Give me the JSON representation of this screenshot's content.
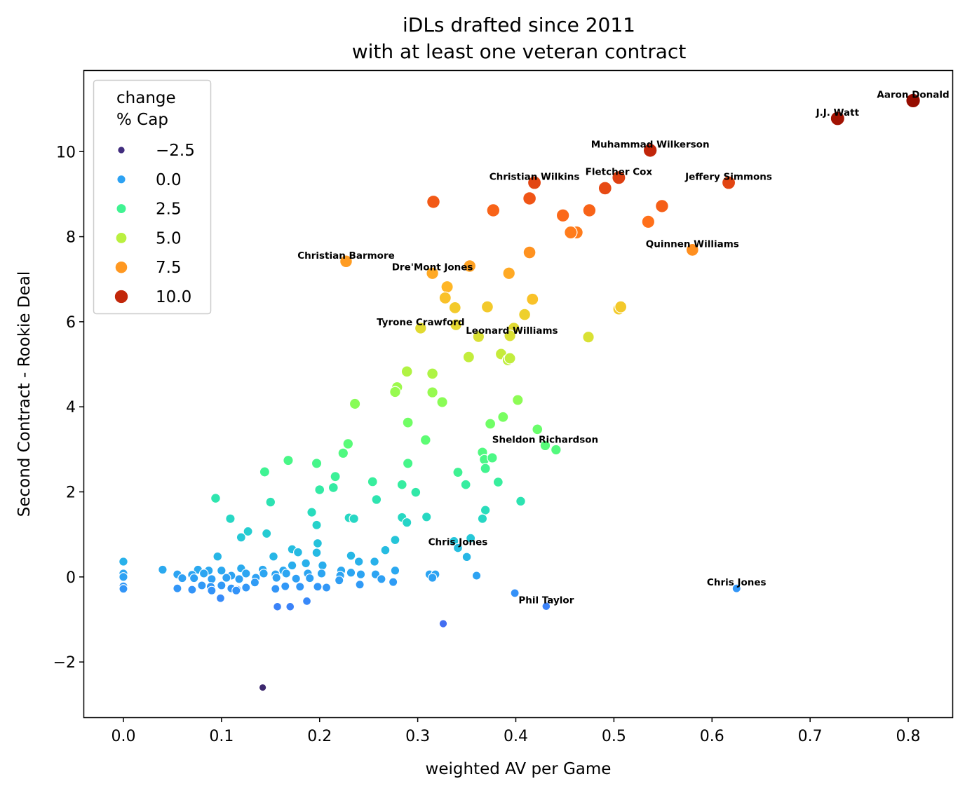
{
  "chart_data": {
    "type": "scatter",
    "title": [
      "iDLs drafted since 2011",
      "with at least one veteran contract"
    ],
    "xlabel": "weighted AV per Game",
    "ylabel": "Second Contract - Rookie Deal",
    "xlim": [
      -0.04,
      0.845
    ],
    "ylim": [
      -3.3,
      11.9
    ],
    "xticks": [
      0.0,
      0.1,
      0.2,
      0.3,
      0.4,
      0.5,
      0.6,
      0.7,
      0.8
    ],
    "xtick_labels": [
      "0.0",
      "0.1",
      "0.2",
      "0.3",
      "0.4",
      "0.5",
      "0.6",
      "0.7",
      "0.8"
    ],
    "yticks": [
      -2,
      0,
      2,
      4,
      6,
      8,
      10
    ],
    "ytick_labels": [
      "−2",
      "0",
      "2",
      "4",
      "6",
      "8",
      "10"
    ],
    "grid": false,
    "color_scale": "turbo",
    "hue_range": [
      -2.6,
      11.2
    ],
    "legend": {
      "placement": "top-left",
      "title": [
        "change",
        "% Cap"
      ],
      "entries": [
        {
          "label": "−2.5",
          "value": -2.5
        },
        {
          "label": "0.0",
          "value": 0.0
        },
        {
          "label": "2.5",
          "value": 2.5
        },
        {
          "label": "5.0",
          "value": 5.0
        },
        {
          "label": "7.5",
          "value": 7.5
        },
        {
          "label": "10.0",
          "value": 10.0
        }
      ]
    },
    "annotations": [
      {
        "text": "Aaron Donald",
        "x": 0.805,
        "y": 11.2
      },
      {
        "text": "J.J. Watt",
        "x": 0.728,
        "y": 10.78
      },
      {
        "text": "Muhammad Wilkerson",
        "x": 0.537,
        "y": 10.03
      },
      {
        "text": "Fletcher Cox",
        "x": 0.505,
        "y": 9.39
      },
      {
        "text": "Jeffery Simmons",
        "x": 0.617,
        "y": 9.27
      },
      {
        "text": "Christian Wilkins",
        "x": 0.419,
        "y": 9.27
      },
      {
        "text": "Quinnen Williams",
        "x": 0.58,
        "y": 7.69
      },
      {
        "text": "Christian Barmore",
        "x": 0.227,
        "y": 7.42
      },
      {
        "text": "Dre'Mont Jones",
        "x": 0.315,
        "y": 7.14
      },
      {
        "text": "Tyrone Crawford",
        "x": 0.303,
        "y": 5.85
      },
      {
        "text": "Leonard Williams",
        "x": 0.396,
        "y": 5.65
      },
      {
        "text": "Sheldon Richardson",
        "x": 0.43,
        "y": 3.09
      },
      {
        "text": "Chris Jones",
        "x": 0.341,
        "y": 0.68
      },
      {
        "text": "Chris Jones",
        "x": 0.625,
        "y": -0.27
      },
      {
        "text": "Phil Taylor",
        "x": 0.431,
        "y": -0.69
      }
    ],
    "points": [
      {
        "x": 0.805,
        "y": 11.2
      },
      {
        "x": 0.728,
        "y": 10.78
      },
      {
        "x": 0.537,
        "y": 10.03
      },
      {
        "x": 0.505,
        "y": 9.39
      },
      {
        "x": 0.491,
        "y": 9.14
      },
      {
        "x": 0.617,
        "y": 9.27
      },
      {
        "x": 0.419,
        "y": 9.27
      },
      {
        "x": 0.414,
        "y": 8.9
      },
      {
        "x": 0.316,
        "y": 8.82
      },
      {
        "x": 0.377,
        "y": 8.62
      },
      {
        "x": 0.475,
        "y": 8.62
      },
      {
        "x": 0.448,
        "y": 8.5
      },
      {
        "x": 0.549,
        "y": 8.72
      },
      {
        "x": 0.535,
        "y": 8.35
      },
      {
        "x": 0.462,
        "y": 8.1
      },
      {
        "x": 0.456,
        "y": 8.1
      },
      {
        "x": 0.414,
        "y": 7.63
      },
      {
        "x": 0.58,
        "y": 7.69
      },
      {
        "x": 0.227,
        "y": 7.42
      },
      {
        "x": 0.353,
        "y": 7.31
      },
      {
        "x": 0.315,
        "y": 7.14
      },
      {
        "x": 0.393,
        "y": 7.14
      },
      {
        "x": 0.33,
        "y": 6.82
      },
      {
        "x": 0.328,
        "y": 6.56
      },
      {
        "x": 0.417,
        "y": 6.53
      },
      {
        "x": 0.338,
        "y": 6.33
      },
      {
        "x": 0.371,
        "y": 6.35
      },
      {
        "x": 0.505,
        "y": 6.3
      },
      {
        "x": 0.507,
        "y": 6.35
      },
      {
        "x": 0.409,
        "y": 6.17
      },
      {
        "x": 0.303,
        "y": 5.85
      },
      {
        "x": 0.339,
        "y": 5.93
      },
      {
        "x": 0.398,
        "y": 5.85
      },
      {
        "x": 0.362,
        "y": 5.65
      },
      {
        "x": 0.394,
        "y": 5.67
      },
      {
        "x": 0.474,
        "y": 5.64
      },
      {
        "x": 0.385,
        "y": 5.24
      },
      {
        "x": 0.352,
        "y": 5.17
      },
      {
        "x": 0.392,
        "y": 5.1
      },
      {
        "x": 0.394,
        "y": 5.14
      },
      {
        "x": 0.289,
        "y": 4.83
      },
      {
        "x": 0.315,
        "y": 4.78
      },
      {
        "x": 0.279,
        "y": 4.46
      },
      {
        "x": 0.277,
        "y": 4.35
      },
      {
        "x": 0.315,
        "y": 4.34
      },
      {
        "x": 0.325,
        "y": 4.11
      },
      {
        "x": 0.236,
        "y": 4.07
      },
      {
        "x": 0.402,
        "y": 4.16
      },
      {
        "x": 0.29,
        "y": 3.63
      },
      {
        "x": 0.374,
        "y": 3.6
      },
      {
        "x": 0.387,
        "y": 3.76
      },
      {
        "x": 0.422,
        "y": 3.47
      },
      {
        "x": 0.308,
        "y": 3.22
      },
      {
        "x": 0.229,
        "y": 3.13
      },
      {
        "x": 0.43,
        "y": 3.09
      },
      {
        "x": 0.441,
        "y": 2.99
      },
      {
        "x": 0.366,
        "y": 2.93
      },
      {
        "x": 0.224,
        "y": 2.91
      },
      {
        "x": 0.368,
        "y": 2.76
      },
      {
        "x": 0.376,
        "y": 2.8
      },
      {
        "x": 0.144,
        "y": 2.47
      },
      {
        "x": 0.168,
        "y": 2.74
      },
      {
        "x": 0.197,
        "y": 2.67
      },
      {
        "x": 0.29,
        "y": 2.67
      },
      {
        "x": 0.369,
        "y": 2.55
      },
      {
        "x": 0.341,
        "y": 2.46
      },
      {
        "x": 0.216,
        "y": 2.36
      },
      {
        "x": 0.254,
        "y": 2.24
      },
      {
        "x": 0.284,
        "y": 2.17
      },
      {
        "x": 0.349,
        "y": 2.17
      },
      {
        "x": 0.382,
        "y": 2.23
      },
      {
        "x": 0.2,
        "y": 2.05
      },
      {
        "x": 0.214,
        "y": 2.1
      },
      {
        "x": 0.298,
        "y": 1.99
      },
      {
        "x": 0.094,
        "y": 1.85
      },
      {
        "x": 0.15,
        "y": 1.76
      },
      {
        "x": 0.258,
        "y": 1.82
      },
      {
        "x": 0.405,
        "y": 1.78
      },
      {
        "x": 0.369,
        "y": 1.57
      },
      {
        "x": 0.192,
        "y": 1.52
      },
      {
        "x": 0.109,
        "y": 1.37
      },
      {
        "x": 0.23,
        "y": 1.39
      },
      {
        "x": 0.235,
        "y": 1.37
      },
      {
        "x": 0.284,
        "y": 1.4
      },
      {
        "x": 0.289,
        "y": 1.28
      },
      {
        "x": 0.309,
        "y": 1.41
      },
      {
        "x": 0.366,
        "y": 1.37
      },
      {
        "x": 0.197,
        "y": 1.22
      },
      {
        "x": 0.127,
        "y": 1.07
      },
      {
        "x": 0.146,
        "y": 1.02
      },
      {
        "x": 0.12,
        "y": 0.93
      },
      {
        "x": 0.198,
        "y": 0.79
      },
      {
        "x": 0.277,
        "y": 0.87
      },
      {
        "x": 0.337,
        "y": 0.84
      },
      {
        "x": 0.354,
        "y": 0.91
      },
      {
        "x": 0.172,
        "y": 0.65
      },
      {
        "x": 0.178,
        "y": 0.58
      },
      {
        "x": 0.267,
        "y": 0.63
      },
      {
        "x": 0.341,
        "y": 0.68
      },
      {
        "x": 0.096,
        "y": 0.48
      },
      {
        "x": 0.153,
        "y": 0.48
      },
      {
        "x": 0.197,
        "y": 0.57
      },
      {
        "x": 0.232,
        "y": 0.5
      },
      {
        "x": 0.35,
        "y": 0.47
      },
      {
        "x": 0.0,
        "y": 0.36
      },
      {
        "x": 0.24,
        "y": 0.36
      },
      {
        "x": 0.256,
        "y": 0.36
      },
      {
        "x": 0.04,
        "y": 0.17
      },
      {
        "x": 0.076,
        "y": 0.17
      },
      {
        "x": 0.087,
        "y": 0.15
      },
      {
        "x": 0.1,
        "y": 0.15
      },
      {
        "x": 0.12,
        "y": 0.2
      },
      {
        "x": 0.142,
        "y": 0.17
      },
      {
        "x": 0.163,
        "y": 0.15
      },
      {
        "x": 0.172,
        "y": 0.27
      },
      {
        "x": 0.186,
        "y": 0.32
      },
      {
        "x": 0.203,
        "y": 0.27
      },
      {
        "x": 0.222,
        "y": 0.15
      },
      {
        "x": 0.277,
        "y": 0.15
      },
      {
        "x": 0.0,
        "y": 0.08
      },
      {
        "x": 0.055,
        "y": 0.06
      },
      {
        "x": 0.07,
        "y": 0.05
      },
      {
        "x": 0.082,
        "y": 0.08
      },
      {
        "x": 0.11,
        "y": 0.03
      },
      {
        "x": 0.125,
        "y": 0.08
      },
      {
        "x": 0.143,
        "y": 0.08
      },
      {
        "x": 0.155,
        "y": 0.06
      },
      {
        "x": 0.166,
        "y": 0.08
      },
      {
        "x": 0.188,
        "y": 0.08
      },
      {
        "x": 0.202,
        "y": 0.08
      },
      {
        "x": 0.221,
        "y": 0.03
      },
      {
        "x": 0.232,
        "y": 0.1
      },
      {
        "x": 0.242,
        "y": 0.06
      },
      {
        "x": 0.257,
        "y": 0.06
      },
      {
        "x": 0.312,
        "y": 0.06
      },
      {
        "x": 0.318,
        "y": 0.06
      },
      {
        "x": 0.36,
        "y": 0.03
      },
      {
        "x": 0.0,
        "y": 0.0
      },
      {
        "x": 0.06,
        "y": -0.03
      },
      {
        "x": 0.072,
        "y": -0.03
      },
      {
        "x": 0.09,
        "y": -0.05
      },
      {
        "x": 0.105,
        "y": -0.02
      },
      {
        "x": 0.118,
        "y": -0.05
      },
      {
        "x": 0.135,
        "y": -0.02
      },
      {
        "x": 0.156,
        "y": -0.02
      },
      {
        "x": 0.176,
        "y": -0.04
      },
      {
        "x": 0.19,
        "y": -0.03
      },
      {
        "x": 0.22,
        "y": -0.08
      },
      {
        "x": 0.263,
        "y": -0.05
      },
      {
        "x": 0.275,
        "y": -0.12
      },
      {
        "x": 0.315,
        "y": -0.02
      },
      {
        "x": 0.0,
        "y": -0.22
      },
      {
        "x": 0.055,
        "y": -0.27
      },
      {
        "x": 0.07,
        "y": -0.3
      },
      {
        "x": 0.08,
        "y": -0.2
      },
      {
        "x": 0.089,
        "y": -0.23
      },
      {
        "x": 0.1,
        "y": -0.2
      },
      {
        "x": 0.11,
        "y": -0.27
      },
      {
        "x": 0.116,
        "y": -0.3
      },
      {
        "x": 0.125,
        "y": -0.25
      },
      {
        "x": 0.134,
        "y": -0.13
      },
      {
        "x": 0.155,
        "y": -0.28
      },
      {
        "x": 0.165,
        "y": -0.22
      },
      {
        "x": 0.18,
        "y": -0.23
      },
      {
        "x": 0.198,
        "y": -0.23
      },
      {
        "x": 0.207,
        "y": -0.25
      },
      {
        "x": 0.241,
        "y": -0.18
      },
      {
        "x": 0.0,
        "y": -0.28
      },
      {
        "x": 0.09,
        "y": -0.32
      },
      {
        "x": 0.099,
        "y": -0.5
      },
      {
        "x": 0.115,
        "y": -0.32
      },
      {
        "x": 0.157,
        "y": -0.7
      },
      {
        "x": 0.17,
        "y": -0.7
      },
      {
        "x": 0.187,
        "y": -0.57
      },
      {
        "x": 0.399,
        "y": -0.38
      },
      {
        "x": 0.431,
        "y": -0.69
      },
      {
        "x": 0.625,
        "y": -0.27
      },
      {
        "x": 0.326,
        "y": -1.1
      },
      {
        "x": 0.142,
        "y": -2.6
      }
    ]
  }
}
